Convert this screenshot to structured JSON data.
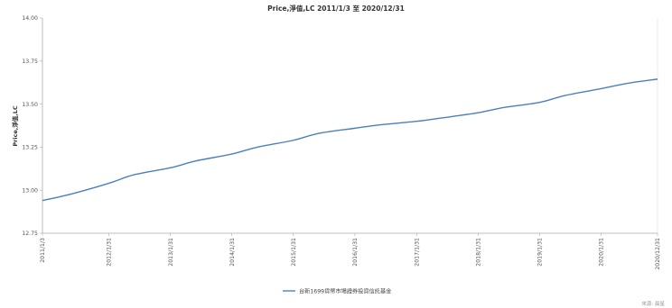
{
  "chart_data": {
    "type": "line",
    "title": "Price,淨值,LC 2011/1/3 至 2020/12/31",
    "xlabel": "",
    "ylabel": "Price,淨值,LC",
    "x_tick_labels": [
      "2011/1/3",
      "2012/1/31",
      "2013/1/31",
      "2014/1/31",
      "2015/1/31",
      "2016/1/31",
      "2017/1/31",
      "2018/1/31",
      "2019/1/31",
      "2020/1/31",
      "2020/12/31"
    ],
    "y_ticks": [
      12.75,
      13.0,
      13.25,
      13.5,
      13.75,
      14.0
    ],
    "y_tick_labels": [
      "12.75",
      "13.00",
      "13.25",
      "13.50",
      "13.75",
      "14.00"
    ],
    "ylim": [
      12.75,
      14.0
    ],
    "grid": false,
    "legend_position": "bottom-center",
    "series": [
      {
        "name": "台新1699貨幣市場證券投資信託基金",
        "color": "#4a7fc1",
        "x": [
          "2011/1/3",
          "2011/7/1",
          "2012/1/31",
          "2012/7/1",
          "2013/1/31",
          "2013/7/1",
          "2014/1/31",
          "2014/7/1",
          "2015/1/31",
          "2015/7/1",
          "2016/1/31",
          "2016/7/1",
          "2017/1/31",
          "2017/7/1",
          "2018/1/31",
          "2018/7/1",
          "2019/1/31",
          "2019/7/1",
          "2020/1/31",
          "2020/7/1",
          "2020/12/31"
        ],
        "values": [
          12.94,
          12.98,
          13.04,
          13.09,
          13.13,
          13.17,
          13.21,
          13.25,
          13.29,
          13.33,
          13.36,
          13.38,
          13.4,
          13.42,
          13.45,
          13.48,
          13.51,
          13.55,
          13.59,
          13.62,
          13.645
        ]
      }
    ]
  },
  "source": "來源: 晨星",
  "colors": {
    "axis": "#aaaaaa",
    "line": "#4a7fc1"
  }
}
